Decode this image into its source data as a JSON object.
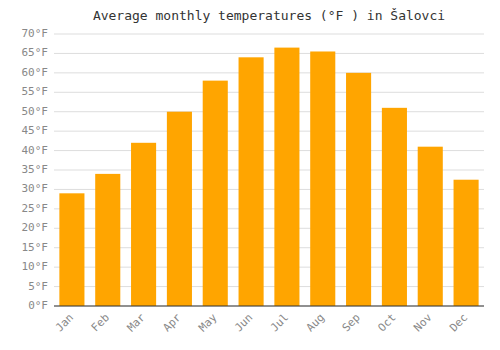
{
  "chart_data": {
    "type": "bar",
    "title": "Average monthly temperatures (°F ) in Šalovci",
    "categories": [
      "Jan",
      "Feb",
      "Mar",
      "Apr",
      "May",
      "Jun",
      "Jul",
      "Aug",
      "Sep",
      "Oct",
      "Nov",
      "Dec"
    ],
    "values": [
      29,
      34,
      42,
      50,
      58,
      64,
      66.5,
      65.5,
      60,
      51,
      41,
      32.5
    ],
    "color": "#FFA500",
    "ylim": [
      0,
      70
    ],
    "yticks": [
      {
        "value": 0,
        "label": "0°F"
      },
      {
        "value": 5,
        "label": "5°F"
      },
      {
        "value": 10,
        "label": "10°F"
      },
      {
        "value": 15,
        "label": "15°F"
      },
      {
        "value": 20,
        "label": "20°F"
      },
      {
        "value": 25,
        "label": "25°F"
      },
      {
        "value": 30,
        "label": "30°F"
      },
      {
        "value": 35,
        "label": "35°F"
      },
      {
        "value": 40,
        "label": "40°F"
      },
      {
        "value": 45,
        "label": "45°F"
      },
      {
        "value": 50,
        "label": "50°F"
      },
      {
        "value": 55,
        "label": "55°F"
      },
      {
        "value": 60,
        "label": "60°F"
      },
      {
        "value": 65,
        "label": "65°F"
      },
      {
        "value": 70,
        "label": "70°F"
      }
    ],
    "grid": true
  }
}
